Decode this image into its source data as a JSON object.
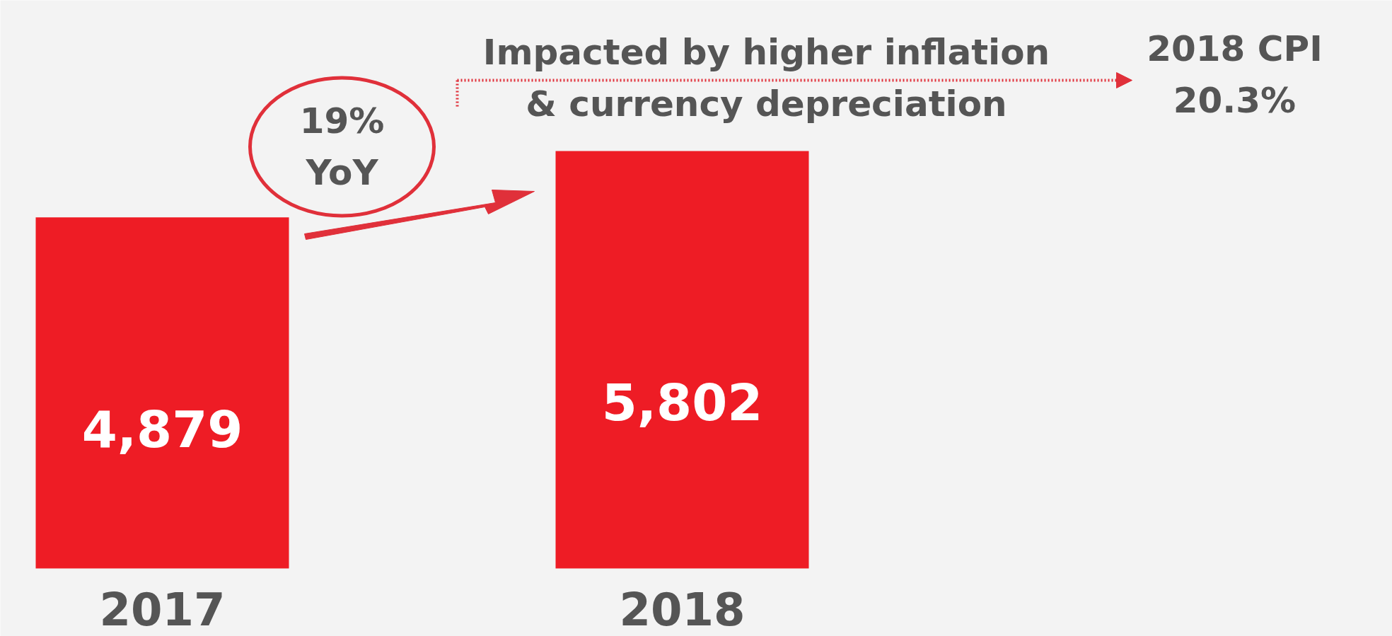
{
  "chart_data": {
    "type": "bar",
    "categories": [
      "2017",
      "2018"
    ],
    "values": [
      4879,
      5802
    ],
    "color": "#ee1c25",
    "value_labels": [
      "4,879",
      "5,802"
    ],
    "annotations": [
      "19%\nYoY",
      "Impacted by higher inflation\n& currency depreciation",
      "2018 CPI\n20.3%"
    ]
  }
}
